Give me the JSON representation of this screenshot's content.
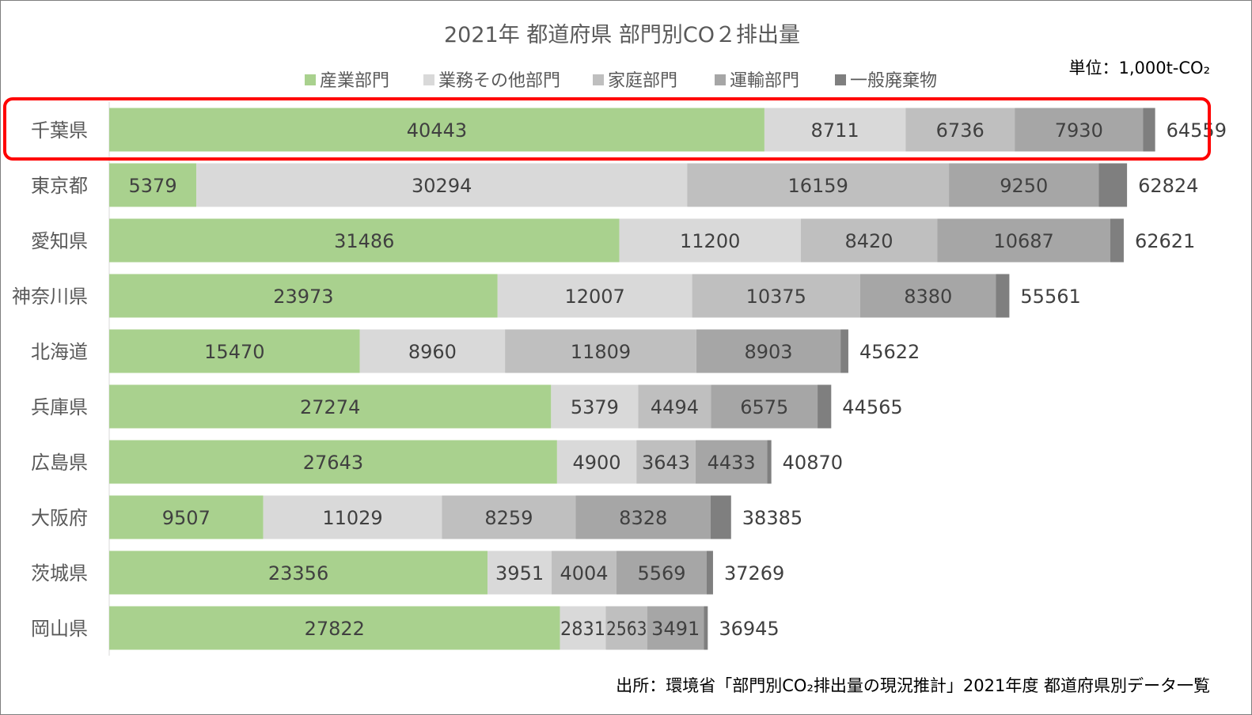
{
  "chart_data": {
    "type": "bar",
    "orientation": "horizontal",
    "stacked": true,
    "title": "2021年 都道府県 部門別CO２排出量",
    "unit": "単位：1,000t-CO₂",
    "source": "出所：環境省「部門別CO₂排出量の現況推計」2021年度 都道府県別データ一覧",
    "legend_position": "top",
    "highlighted_category": "千葉県",
    "highlight_color": "#ff0000",
    "categories": [
      "千葉県",
      "東京都",
      "愛知県",
      "神奈川県",
      "北海道",
      "兵庫県",
      "広島県",
      "大阪府",
      "茨城県",
      "岡山県"
    ],
    "series": [
      {
        "name": "産業部門",
        "color": "#a9d18e",
        "values": [
          40443,
          5379,
          31486,
          23973,
          15470,
          27274,
          27643,
          9507,
          23356,
          27822
        ]
      },
      {
        "name": "業務その他部門",
        "color": "#d9d9d9",
        "values": [
          8711,
          30294,
          11200,
          12007,
          8960,
          5379,
          4900,
          11029,
          3951,
          2831
        ]
      },
      {
        "name": "家庭部門",
        "color": "#bfbfbf",
        "values": [
          6736,
          16159,
          8420,
          10375,
          11809,
          4494,
          3643,
          8259,
          4004,
          2563
        ]
      },
      {
        "name": "運輸部門",
        "color": "#a6a6a6",
        "values": [
          7930,
          9250,
          10687,
          8380,
          8903,
          6575,
          4433,
          8328,
          5569,
          3491
        ]
      },
      {
        "name": "一般廃棄物",
        "color": "#7f7f7f",
        "values": [
          739,
          1742,
          828,
          826,
          480,
          843,
          251,
          1262,
          389,
          238
        ]
      }
    ],
    "totals": [
      64559,
      62824,
      62621,
      55561,
      45622,
      44565,
      40870,
      38385,
      37269,
      36945
    ],
    "xlim": [
      0,
      70000
    ],
    "grid": false
  }
}
